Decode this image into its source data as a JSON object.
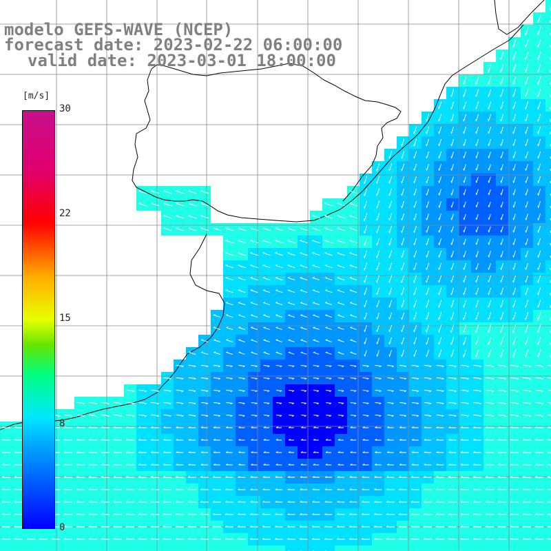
{
  "title": {
    "line1": "modelo GEFS-WAVE (NCEP)",
    "line2": "forecast date: 2023-02-22 06:00:00",
    "line3": "valid date: 2023-03-01 18:00:00"
  },
  "colorbar": {
    "unit": "[m/s]",
    "ticks": [
      {
        "value": 30,
        "label": "30"
      },
      {
        "value": 22,
        "label": "22"
      },
      {
        "value": 15,
        "label": "15"
      },
      {
        "value": 8,
        "label": "8"
      },
      {
        "value": 0,
        "label": "0"
      }
    ],
    "range": [
      0,
      30
    ],
    "colors": [
      "#0000ff",
      "#00a8ff",
      "#00e8ff",
      "#00ff80",
      "#66e600",
      "#e8ff00",
      "#ffb000",
      "#ff6000",
      "#ff0000",
      "#e00070",
      "#c8108c"
    ]
  },
  "map": {
    "variable": "wind speed",
    "land_color": "#ffffff",
    "grid_color": "#808080",
    "coast_color": "#000000",
    "arrow_color": "#ffffff"
  }
}
